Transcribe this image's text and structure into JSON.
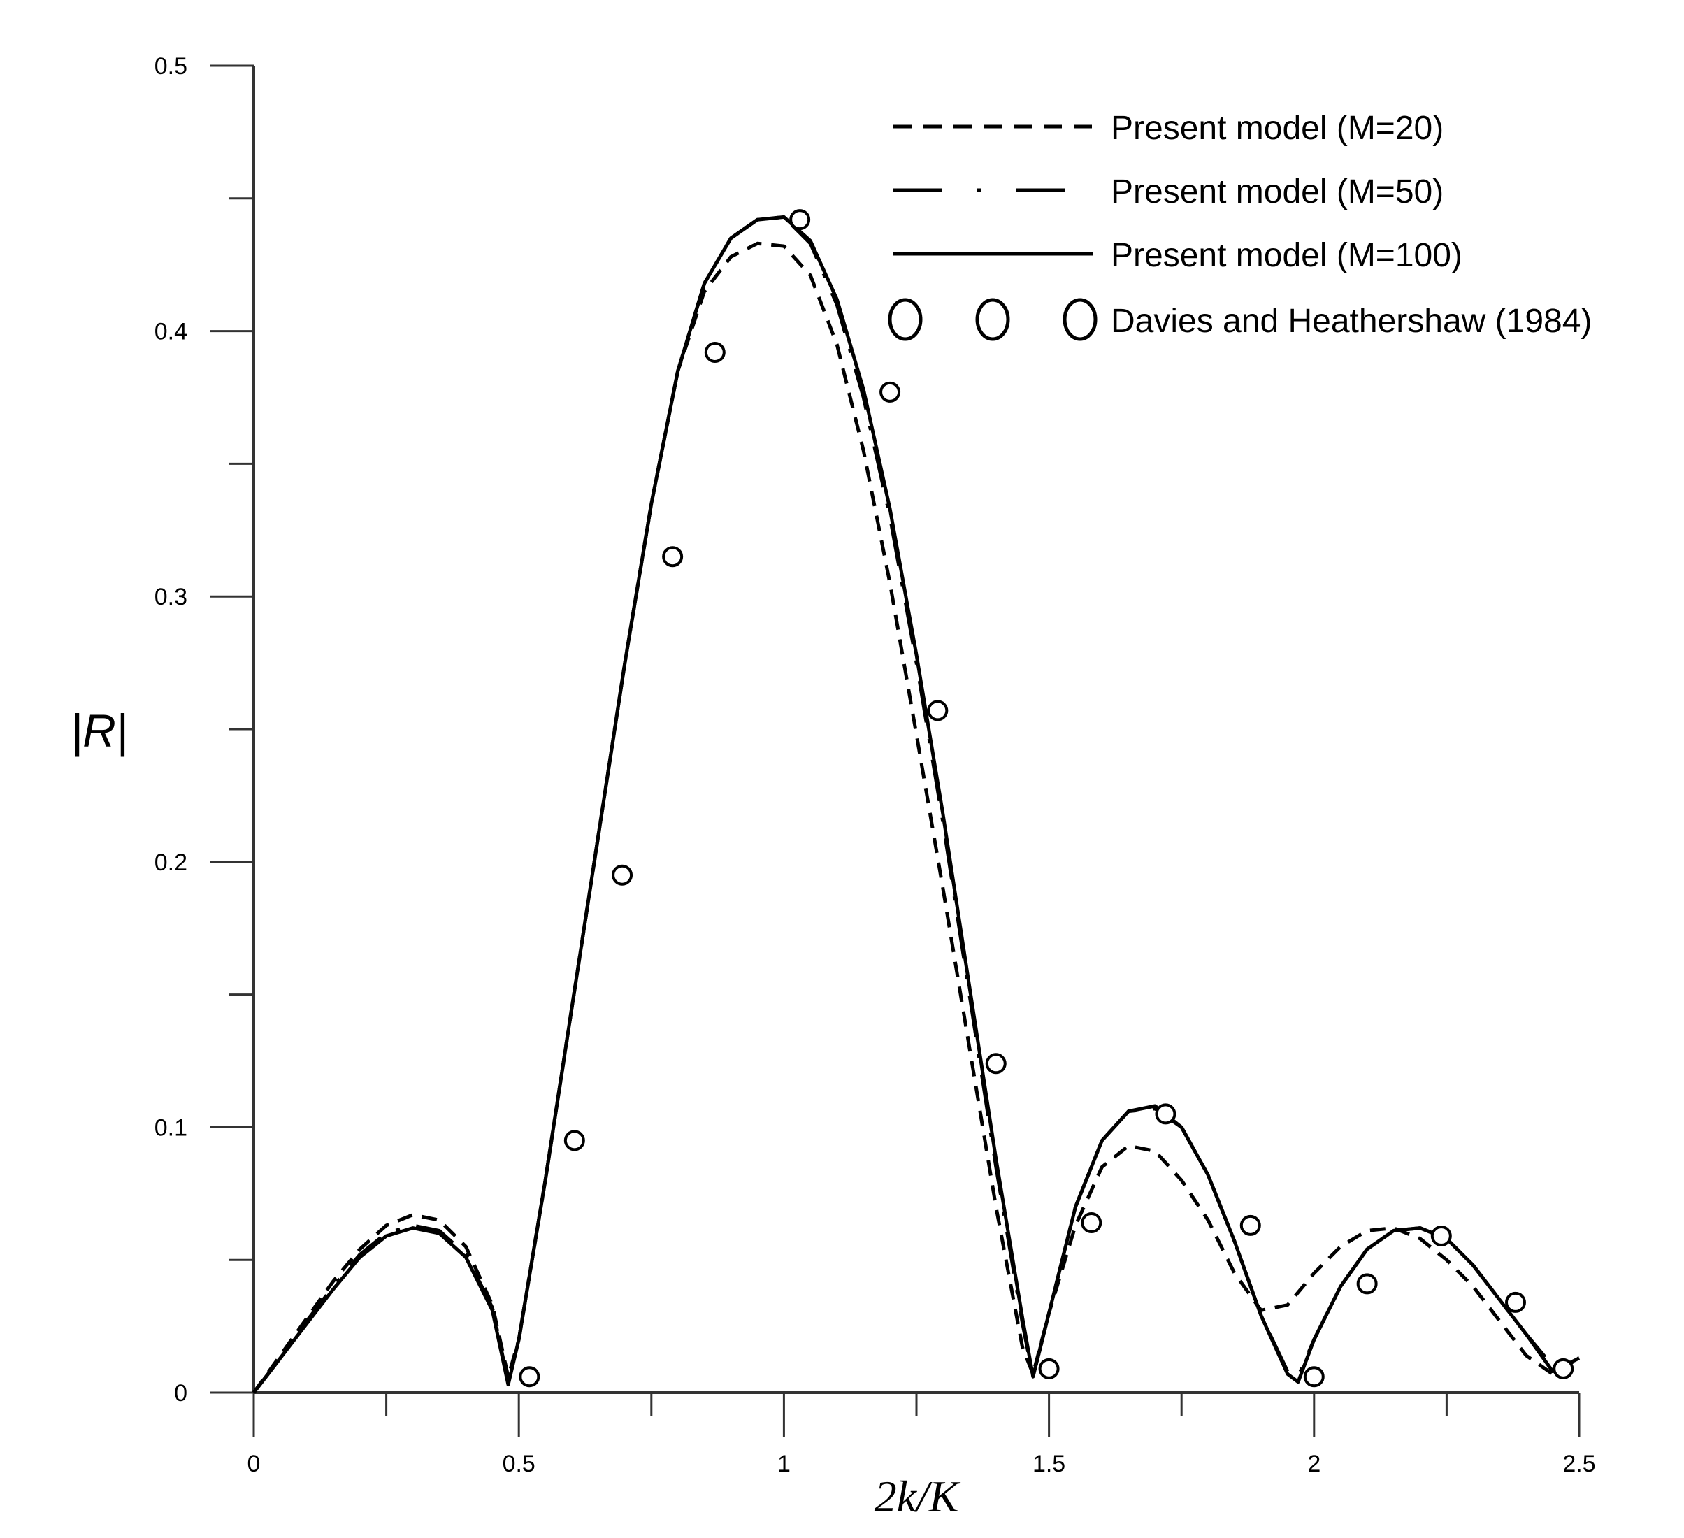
{
  "chart_data": {
    "type": "line",
    "xlabel": "2k/K",
    "ylabel": "|R|",
    "xlim": [
      0,
      2.5
    ],
    "ylim": [
      0,
      0.5
    ],
    "x_ticks": [
      "0",
      "0.5",
      "1",
      "1.5",
      "2",
      "2.5"
    ],
    "y_ticks": [
      "0",
      "0.1",
      "0.2",
      "0.3",
      "0.4",
      "0.5"
    ],
    "grid": false,
    "legend_position": "top-right",
    "series": [
      {
        "name": "Present model (M=20)",
        "style": "dashed",
        "x": [
          0,
          0.05,
          0.1,
          0.15,
          0.2,
          0.25,
          0.3,
          0.35,
          0.4,
          0.45,
          0.48,
          0.5,
          0.55,
          0.6,
          0.65,
          0.7,
          0.75,
          0.8,
          0.85,
          0.9,
          0.95,
          1.0,
          1.05,
          1.1,
          1.15,
          1.2,
          1.25,
          1.3,
          1.35,
          1.4,
          1.45,
          1.47,
          1.5,
          1.55,
          1.6,
          1.65,
          1.7,
          1.75,
          1.8,
          1.85,
          1.9,
          1.95,
          2.0,
          2.05,
          2.1,
          2.15,
          2.2,
          2.25,
          2.3,
          2.35,
          2.4,
          2.45,
          2.5
        ],
        "y": [
          0,
          0.014,
          0.028,
          0.042,
          0.054,
          0.063,
          0.067,
          0.065,
          0.055,
          0.033,
          0.006,
          0.02,
          0.08,
          0.145,
          0.21,
          0.275,
          0.335,
          0.385,
          0.415,
          0.428,
          0.433,
          0.432,
          0.421,
          0.395,
          0.355,
          0.305,
          0.248,
          0.19,
          0.13,
          0.07,
          0.017,
          0.007,
          0.03,
          0.063,
          0.085,
          0.093,
          0.091,
          0.08,
          0.065,
          0.045,
          0.031,
          0.033,
          0.045,
          0.055,
          0.061,
          0.062,
          0.058,
          0.05,
          0.04,
          0.027,
          0.014,
          0.007,
          0.013
        ]
      },
      {
        "name": "Present model (M=50)",
        "style": "dash-dot",
        "x": [
          0,
          0.05,
          0.1,
          0.15,
          0.2,
          0.25,
          0.3,
          0.35,
          0.4,
          0.45,
          0.48,
          0.5,
          0.55,
          0.6,
          0.65,
          0.7,
          0.75,
          0.8,
          0.85,
          0.9,
          0.95,
          1.0,
          1.05,
          1.1,
          1.15,
          1.2,
          1.25,
          1.3,
          1.35,
          1.4,
          1.45,
          1.47,
          1.5,
          1.55,
          1.6,
          1.65,
          1.7,
          1.75,
          1.8,
          1.85,
          1.9,
          1.95,
          1.97,
          2.0,
          2.05,
          2.1,
          2.15,
          2.2,
          2.25,
          2.3,
          2.35,
          2.4,
          2.45,
          2.5
        ],
        "y": [
          0,
          0.013,
          0.027,
          0.04,
          0.052,
          0.06,
          0.063,
          0.061,
          0.052,
          0.032,
          0.004,
          0.02,
          0.08,
          0.145,
          0.21,
          0.275,
          0.335,
          0.385,
          0.418,
          0.435,
          0.442,
          0.443,
          0.433,
          0.41,
          0.375,
          0.33,
          0.275,
          0.215,
          0.15,
          0.085,
          0.026,
          0.006,
          0.03,
          0.07,
          0.095,
          0.106,
          0.107,
          0.1,
          0.082,
          0.057,
          0.029,
          0.008,
          0.006,
          0.02,
          0.04,
          0.054,
          0.061,
          0.062,
          0.058,
          0.048,
          0.035,
          0.022,
          0.01,
          0.013
        ]
      },
      {
        "name": "Present model (M=100)",
        "style": "solid",
        "x": [
          0,
          0.05,
          0.1,
          0.15,
          0.2,
          0.25,
          0.3,
          0.35,
          0.4,
          0.45,
          0.48,
          0.5,
          0.55,
          0.6,
          0.65,
          0.7,
          0.75,
          0.8,
          0.85,
          0.9,
          0.95,
          1.0,
          1.05,
          1.1,
          1.15,
          1.2,
          1.25,
          1.3,
          1.35,
          1.4,
          1.45,
          1.47,
          1.5,
          1.55,
          1.6,
          1.65,
          1.7,
          1.75,
          1.8,
          1.85,
          1.9,
          1.95,
          1.97,
          2.0,
          2.05,
          2.1,
          2.15,
          2.2,
          2.25,
          2.3,
          2.35,
          2.4,
          2.45,
          2.5
        ],
        "y": [
          0,
          0.013,
          0.026,
          0.039,
          0.051,
          0.059,
          0.062,
          0.06,
          0.051,
          0.031,
          0.003,
          0.02,
          0.08,
          0.145,
          0.21,
          0.275,
          0.335,
          0.385,
          0.418,
          0.435,
          0.442,
          0.443,
          0.434,
          0.412,
          0.378,
          0.333,
          0.278,
          0.218,
          0.153,
          0.088,
          0.028,
          0.006,
          0.03,
          0.07,
          0.095,
          0.106,
          0.108,
          0.1,
          0.082,
          0.057,
          0.029,
          0.007,
          0.004,
          0.02,
          0.04,
          0.054,
          0.061,
          0.062,
          0.058,
          0.048,
          0.035,
          0.022,
          0.008,
          0.013
        ]
      },
      {
        "name": "Davies and Heathershaw (1984)",
        "style": "markers",
        "marker": "circle",
        "x": [
          0.52,
          0.605,
          0.695,
          0.79,
          0.87,
          1.03,
          1.2,
          1.29,
          1.4,
          1.5,
          1.58,
          1.72,
          1.88,
          2.0,
          2.1,
          2.24,
          2.38,
          2.47
        ],
        "y": [
          0.006,
          0.095,
          0.195,
          0.315,
          0.392,
          0.442,
          0.377,
          0.257,
          0.124,
          0.009,
          0.064,
          0.105,
          0.063,
          0.006,
          0.041,
          0.059,
          0.034,
          0.009
        ]
      }
    ]
  }
}
